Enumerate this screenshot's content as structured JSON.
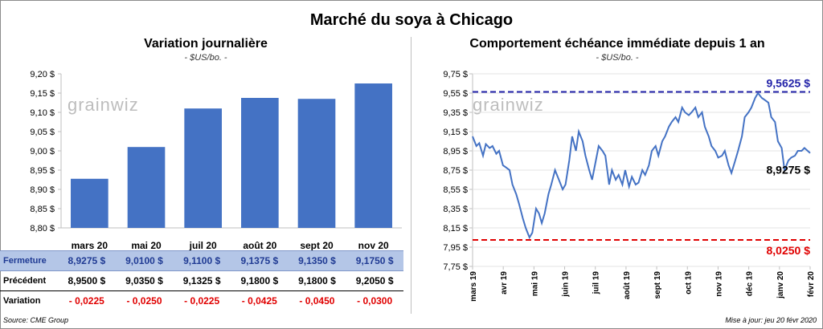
{
  "title": "Marché du soya à Chicago",
  "watermark": "grainwiz",
  "left": {
    "title": "Variation journalière",
    "unit": "- $US/bo. -",
    "row_labels": {
      "close": "Fermeture",
      "prev": "Précédent",
      "var": "Variation"
    },
    "close_text": [
      "8,9275 $",
      "9,0100 $",
      "9,1100 $",
      "9,1375 $",
      "9,1350 $",
      "9,1750 $"
    ],
    "prev_text": [
      "8,9500 $",
      "9,0350 $",
      "9,1325 $",
      "9,1800 $",
      "9,1800 $",
      "9,2050 $"
    ],
    "var_text": [
      "- 0,0225",
      "- 0,0250",
      "- 0,0225",
      "- 0,0425",
      "- 0,0450",
      "- 0,0300"
    ]
  },
  "right": {
    "title": "Comportement  échéance immédiate depuis 1 an",
    "unit": "- $US/bo. -",
    "high_label": "9,5625 $",
    "low_label": "8,0250 $",
    "last_label": "8,9275 $"
  },
  "source": "Source: CME Group",
  "updated": "Mise à jour: jeu 20 févr 2020",
  "colors": {
    "bar": "#4472c4",
    "line": "#4472c4",
    "high": "#2222a8",
    "low": "#e00000"
  },
  "chart_data": [
    {
      "type": "bar",
      "title": "Variation journalière",
      "categories": [
        "mars 20",
        "mai 20",
        "juil 20",
        "août 20",
        "sept 20",
        "nov 20"
      ],
      "values": [
        8.9275,
        9.01,
        9.11,
        9.1375,
        9.135,
        9.175
      ],
      "ylim": [
        8.8,
        9.2
      ],
      "yticks": [
        "8,80 $",
        "8,85 $",
        "8,90 $",
        "8,95 $",
        "9,00 $",
        "9,05 $",
        "9,10 $",
        "9,15 $",
        "9,20 $"
      ],
      "grid": false
    },
    {
      "type": "line",
      "title": "Comportement  échéance immédiate depuis 1 an",
      "ylim": [
        7.75,
        9.75
      ],
      "yticks": [
        "7,75 $",
        "7,95 $",
        "8,15 $",
        "8,35 $",
        "8,55 $",
        "8,75 $",
        "8,95 $",
        "9,15 $",
        "9,35 $",
        "9,55 $",
        "9,75 $"
      ],
      "xticks": [
        "mars 19",
        "avr 19",
        "mai 19",
        "juin 19",
        "juil 19",
        "août 19",
        "sept 19",
        "oct 19",
        "nov 19",
        "déc 19",
        "janv 20",
        "févr 20"
      ],
      "reference_lines": [
        {
          "label": "9,5625 $",
          "value": 9.5625,
          "color": "#2222a8"
        },
        {
          "label": "8,0250 $",
          "value": 8.025,
          "color": "#e00000"
        }
      ],
      "last_value": 8.9275,
      "x": [
        "2019-03-01",
        "2019-03-05",
        "2019-03-08",
        "2019-03-12",
        "2019-03-15",
        "2019-03-19",
        "2019-03-22",
        "2019-03-26",
        "2019-03-29",
        "2019-04-02",
        "2019-04-05",
        "2019-04-09",
        "2019-04-12",
        "2019-04-16",
        "2019-04-19",
        "2019-04-23",
        "2019-04-26",
        "2019-04-30",
        "2019-05-03",
        "2019-05-07",
        "2019-05-10",
        "2019-05-13",
        "2019-05-16",
        "2019-05-20",
        "2019-05-23",
        "2019-05-27",
        "2019-05-31",
        "2019-06-04",
        "2019-06-07",
        "2019-06-11",
        "2019-06-14",
        "2019-06-18",
        "2019-06-21",
        "2019-06-25",
        "2019-06-28",
        "2019-07-02",
        "2019-07-05",
        "2019-07-09",
        "2019-07-12",
        "2019-07-16",
        "2019-07-19",
        "2019-07-23",
        "2019-07-26",
        "2019-07-30",
        "2019-08-02",
        "2019-08-06",
        "2019-08-09",
        "2019-08-13",
        "2019-08-16",
        "2019-08-20",
        "2019-08-23",
        "2019-08-27",
        "2019-08-30",
        "2019-09-03",
        "2019-09-06",
        "2019-09-10",
        "2019-09-13",
        "2019-09-17",
        "2019-09-20",
        "2019-09-24",
        "2019-09-27",
        "2019-10-01",
        "2019-10-04",
        "2019-10-08",
        "2019-10-11",
        "2019-10-15",
        "2019-10-18",
        "2019-10-22",
        "2019-10-25",
        "2019-10-29",
        "2019-11-01",
        "2019-11-05",
        "2019-11-08",
        "2019-11-12",
        "2019-11-15",
        "2019-11-19",
        "2019-11-22",
        "2019-11-26",
        "2019-11-29",
        "2019-12-03",
        "2019-12-06",
        "2019-12-10",
        "2019-12-13",
        "2019-12-17",
        "2019-12-20",
        "2019-12-24",
        "2019-12-27",
        "2019-12-31",
        "2020-01-03",
        "2020-01-07",
        "2020-01-10",
        "2020-01-14",
        "2020-01-17",
        "2020-01-21",
        "2020-01-24",
        "2020-01-28",
        "2020-01-31",
        "2020-02-04",
        "2020-02-07",
        "2020-02-11",
        "2020-02-14",
        "2020-02-20"
      ],
      "y": [
        9.1,
        9.0,
        9.03,
        8.9,
        9.02,
        8.98,
        9.0,
        8.92,
        8.95,
        8.8,
        8.78,
        8.75,
        8.6,
        8.5,
        8.4,
        8.25,
        8.15,
        8.05,
        8.1,
        8.35,
        8.3,
        8.2,
        8.3,
        8.5,
        8.6,
        8.75,
        8.65,
        8.55,
        8.6,
        8.85,
        9.1,
        8.95,
        9.15,
        9.05,
        8.9,
        8.75,
        8.65,
        8.85,
        9.0,
        8.95,
        8.9,
        8.6,
        8.75,
        8.65,
        8.7,
        8.6,
        8.75,
        8.58,
        8.68,
        8.6,
        8.62,
        8.75,
        8.7,
        8.8,
        8.95,
        9.0,
        8.9,
        9.05,
        9.1,
        9.2,
        9.25,
        9.3,
        9.25,
        9.4,
        9.35,
        9.32,
        9.35,
        9.4,
        9.3,
        9.35,
        9.2,
        9.1,
        9.0,
        8.95,
        8.88,
        8.9,
        8.95,
        8.8,
        8.72,
        8.85,
        8.95,
        9.1,
        9.3,
        9.35,
        9.4,
        9.5,
        9.55,
        9.5,
        9.48,
        9.45,
        9.3,
        9.25,
        9.05,
        8.98,
        8.75,
        8.85,
        8.88,
        8.9,
        8.95,
        8.95,
        8.98,
        8.9275
      ]
    }
  ]
}
